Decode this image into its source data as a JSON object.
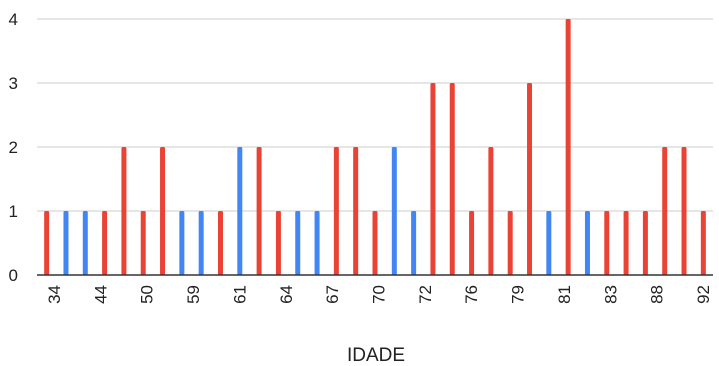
{
  "chart_data": {
    "type": "bar",
    "title": "",
    "xlabel": "IDADE",
    "ylabel": "",
    "ylim": [
      0,
      4
    ],
    "yticks": [
      "0",
      "1",
      "2",
      "3",
      "4"
    ],
    "grid": true,
    "legend": "none",
    "x_tick_labels": [
      "34",
      "44",
      "50",
      "59",
      "61",
      "64",
      "67",
      "70",
      "72",
      "76",
      "79",
      "81",
      "83",
      "88",
      "92"
    ],
    "colors": {
      "red": "#ea4335",
      "blue": "#4285f4",
      "grid": "#cccccc",
      "axis": "#333333"
    },
    "bars": [
      {
        "color": "red",
        "value": 1
      },
      {
        "color": "blue",
        "value": 1
      },
      {
        "color": "blue",
        "value": 1
      },
      {
        "color": "red",
        "value": 1
      },
      {
        "color": "red",
        "value": 2
      },
      {
        "color": "red",
        "value": 1
      },
      {
        "color": "red",
        "value": 2
      },
      {
        "color": "blue",
        "value": 1
      },
      {
        "color": "blue",
        "value": 1
      },
      {
        "color": "red",
        "value": 1
      },
      {
        "color": "blue",
        "value": 2
      },
      {
        "color": "red",
        "value": 2
      },
      {
        "color": "red",
        "value": 1
      },
      {
        "color": "blue",
        "value": 1
      },
      {
        "color": "blue",
        "value": 1
      },
      {
        "color": "red",
        "value": 2
      },
      {
        "color": "red",
        "value": 2
      },
      {
        "color": "red",
        "value": 1
      },
      {
        "color": "blue",
        "value": 2
      },
      {
        "color": "blue",
        "value": 1
      },
      {
        "color": "red",
        "value": 3
      },
      {
        "color": "red",
        "value": 3
      },
      {
        "color": "red",
        "value": 1
      },
      {
        "color": "red",
        "value": 2
      },
      {
        "color": "red",
        "value": 1
      },
      {
        "color": "red",
        "value": 3
      },
      {
        "color": "blue",
        "value": 1
      },
      {
        "color": "red",
        "value": 4
      },
      {
        "color": "blue",
        "value": 1
      },
      {
        "color": "red",
        "value": 1
      },
      {
        "color": "red",
        "value": 1
      },
      {
        "color": "red",
        "value": 1
      },
      {
        "color": "red",
        "value": 2
      },
      {
        "color": "red",
        "value": 2
      },
      {
        "color": "red",
        "value": 1
      }
    ]
  }
}
